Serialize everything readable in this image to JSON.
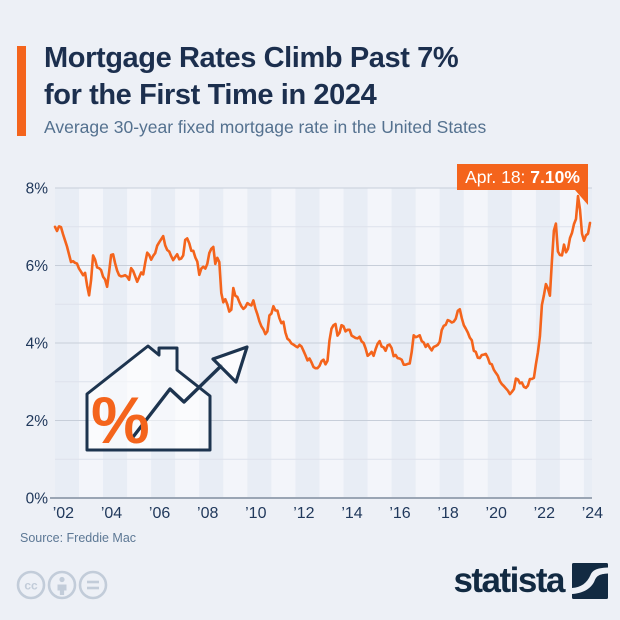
{
  "header": {
    "title_line1": "Mortgage Rates Climb Past 7%",
    "title_line2": "for the First Time in 2024",
    "subtitle": "Average 30-year fixed mortgage rate in the United States"
  },
  "annotation": {
    "date_label": "Apr. 18: ",
    "value_label": "7.10%"
  },
  "icon": {
    "percent_label": "%"
  },
  "footer": {
    "source": "Source: Freddie Mac",
    "license_icons": [
      "cc-icon",
      "attribution-icon",
      "no-derivatives-icon"
    ],
    "brand": "statista"
  },
  "colors": {
    "page_bg": "#edf0f6",
    "stripe_dark": "#e8edf5",
    "stripe_light": "#f3f5fa",
    "grid_major": "#c7ced9",
    "grid_minor": "#dde2eb",
    "axis": "#9aa5b4",
    "navy": "#1c2f4e",
    "subtitle": "#54718f",
    "tick": "#21395c",
    "orange": "#f4641c",
    "brand_navy": "#122a42",
    "cc_gray": "#c2ccd9",
    "source_gray": "#5d7895"
  },
  "chart_data": {
    "type": "line",
    "title": "Average 30-year fixed mortgage rate in the United States",
    "unit": "%",
    "grid": true,
    "legend": "none",
    "x_axis": {
      "min": 2002.0,
      "max": 2024.333,
      "tick_years": [
        2002,
        2004,
        2006,
        2008,
        2010,
        2012,
        2014,
        2016,
        2018,
        2020,
        2022,
        2024
      ],
      "tick_labels": [
        "’02",
        "’04",
        "’06",
        "’08",
        "’10",
        "’12",
        "’14",
        "’16",
        "’18",
        "’20",
        "’22",
        "’24"
      ]
    },
    "y_axis": {
      "min": 0,
      "max": 8,
      "major_ticks": [
        0,
        2,
        4,
        6,
        8
      ],
      "minor_ticks": [
        1,
        3,
        5,
        7
      ],
      "tick_suffix": "%"
    },
    "series": [
      {
        "name": "30-year fixed mortgage rate",
        "color": "#f4641c",
        "frequency": "monthly",
        "start": "2002-01",
        "end": "2024-04",
        "values_monthly": [
          7.0,
          6.89,
          7.01,
          6.99,
          6.81,
          6.65,
          6.49,
          6.29,
          6.09,
          6.11,
          6.07,
          6.05,
          5.92,
          5.84,
          5.75,
          5.81,
          5.48,
          5.23,
          5.63,
          6.26,
          6.15,
          5.95,
          5.93,
          5.88,
          5.71,
          5.64,
          5.45,
          5.83,
          6.27,
          6.29,
          6.06,
          5.87,
          5.75,
          5.72,
          5.73,
          5.75,
          5.71,
          5.63,
          5.93,
          5.86,
          5.72,
          5.58,
          5.7,
          5.82,
          5.77,
          6.07,
          6.33,
          6.27,
          6.15,
          6.25,
          6.32,
          6.51,
          6.6,
          6.68,
          6.76,
          6.52,
          6.4,
          6.36,
          6.24,
          6.14,
          6.22,
          6.29,
          6.16,
          6.18,
          6.26,
          6.66,
          6.7,
          6.57,
          6.38,
          6.38,
          6.21,
          6.1,
          5.76,
          5.92,
          5.97,
          5.92,
          6.04,
          6.32,
          6.43,
          6.48,
          6.04,
          6.2,
          6.09,
          5.29,
          5.05,
          5.13,
          5.0,
          4.81,
          4.86,
          5.42,
          5.22,
          5.19,
          5.06,
          4.95,
          4.88,
          4.93,
          5.03,
          4.99,
          4.97,
          5.1,
          4.89,
          4.74,
          4.56,
          4.43,
          4.35,
          4.23,
          4.3,
          4.71,
          4.76,
          4.95,
          4.84,
          4.84,
          4.64,
          4.51,
          4.55,
          4.27,
          4.11,
          4.07,
          3.99,
          3.96,
          3.92,
          3.89,
          3.95,
          3.91,
          3.8,
          3.68,
          3.55,
          3.6,
          3.5,
          3.38,
          3.35,
          3.35,
          3.41,
          3.53,
          3.57,
          3.45,
          3.54,
          4.07,
          4.37,
          4.46,
          4.49,
          4.19,
          4.26,
          4.46,
          4.43,
          4.3,
          4.34,
          4.34,
          4.19,
          4.16,
          4.13,
          4.12,
          4.16,
          4.04,
          4.0,
          3.86,
          3.67,
          3.71,
          3.77,
          3.67,
          3.84,
          3.98,
          4.05,
          3.91,
          3.89,
          3.8,
          3.94,
          3.96,
          3.87,
          3.66,
          3.69,
          3.61,
          3.6,
          3.57,
          3.44,
          3.44,
          3.46,
          3.47,
          3.77,
          4.2,
          4.15,
          4.17,
          4.2,
          4.05,
          4.01,
          3.9,
          3.97,
          3.88,
          3.81,
          3.9,
          3.92,
          3.95,
          4.03,
          4.33,
          4.44,
          4.47,
          4.59,
          4.57,
          4.53,
          4.55,
          4.63,
          4.83,
          4.87,
          4.64,
          4.46,
          4.37,
          4.27,
          4.14,
          4.07,
          3.8,
          3.77,
          3.62,
          3.61,
          3.69,
          3.7,
          3.72,
          3.62,
          3.47,
          3.45,
          3.31,
          3.23,
          3.16,
          3.02,
          2.94,
          2.89,
          2.83,
          2.77,
          2.68,
          2.74,
          2.81,
          3.08,
          3.06,
          2.96,
          2.98,
          2.87,
          2.84,
          2.9,
          3.07,
          3.07,
          3.1,
          3.45,
          3.76,
          4.17,
          4.98,
          5.23,
          5.52,
          5.41,
          5.22,
          6.11,
          6.9,
          7.08,
          6.36,
          6.27,
          6.26,
          6.54,
          6.34,
          6.43,
          6.71,
          6.84,
          7.07,
          7.2,
          7.79,
          7.44,
          6.82,
          6.64,
          6.78,
          6.82,
          7.1
        ]
      }
    ],
    "last_point": {
      "date": "Apr. 18",
      "value": 7.1
    }
  }
}
